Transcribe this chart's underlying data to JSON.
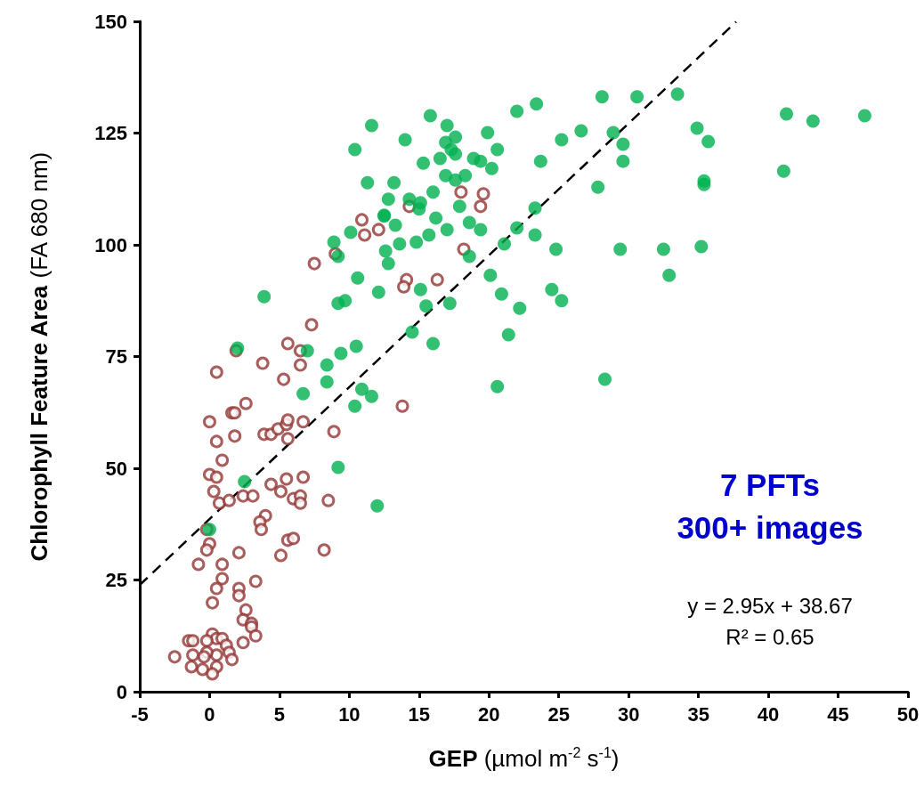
{
  "chart_data": {
    "type": "scatter",
    "xlabel": "GEP (µmol m$^{-2}$ s$^{-1}$)",
    "ylabel": "Chlorophyll Feature Area (FA 680 nm)",
    "xlim": [
      -5,
      50
    ],
    "xticks": [
      -5,
      0,
      5,
      10,
      15,
      20,
      25,
      30,
      35,
      40,
      45,
      50
    ],
    "ylim": [
      0,
      150
    ],
    "yticks": [
      0,
      25,
      50,
      75,
      100,
      125,
      150
    ],
    "grid": false,
    "marker": "circle",
    "annotations": [
      "7 PFTs",
      "300+ images",
      "y = 2.95x + 38.67",
      "R² = 0.65"
    ],
    "series": [
      {
        "color": "#943634",
        "x": [
          0.9,
          0.0,
          0.5,
          0.3,
          0.7,
          1.4,
          2.4,
          3.1,
          4.4,
          5.5,
          6.7,
          5.1,
          6.0,
          6.5,
          6.5,
          8.5,
          4.0,
          3.6,
          3.7,
          -0.2,
          0.0,
          -0.2,
          2.1,
          5.6,
          6.0,
          5.1,
          8.2,
          -0.8,
          0.9,
          0.9,
          3.3,
          0.5,
          2.1,
          2.1,
          0.2,
          2.6,
          2.4,
          3.0,
          3.0,
          3.3,
          2.4,
          0.2,
          0.5,
          0.9,
          -0.2,
          -1.5,
          -1.2,
          1.2,
          1.4,
          1.6,
          0.5,
          -0.2,
          -0.4,
          -1.2,
          -2.5,
          -1.3,
          -0.5,
          0.5,
          0.2,
          10.9,
          11.1,
          12.1,
          9.0,
          7.5,
          14.1,
          13.9,
          7.3,
          5.6,
          6.5,
          1.9,
          3.8,
          6.5,
          0.5,
          5.3,
          2.6,
          1.6,
          1.8,
          13.8,
          0.0,
          0.5,
          1.8,
          3.9,
          4.4,
          4.9,
          5.5,
          5.6,
          6.7,
          5.6,
          8.9,
          14.3,
          18.0,
          19.6,
          19.4,
          18.2,
          16.3
        ],
        "values": [
          51.8,
          48.6,
          48.0,
          44.8,
          42.2,
          42.8,
          43.8,
          43.8,
          46.4,
          47.6,
          48.0,
          44.8,
          43.2,
          43.8,
          42.2,
          42.8,
          39.4,
          38.0,
          36.3,
          36.3,
          33.1,
          31.7,
          31.1,
          33.9,
          34.3,
          30.5,
          31.7,
          28.5,
          28.5,
          25.3,
          24.7,
          23.1,
          23.1,
          21.5,
          19.9,
          18.3,
          16.1,
          15.3,
          14.5,
          12.5,
          11.0,
          12.9,
          11.9,
          11.9,
          11.4,
          11.4,
          11.4,
          10.4,
          8.8,
          7.2,
          8.2,
          8.8,
          7.8,
          8.2,
          7.8,
          5.6,
          5.0,
          5.6,
          4.0,
          105.6,
          102.2,
          103.4,
          98.0,
          95.8,
          92.2,
          90.6,
          82.1,
          77.9,
          76.3,
          76.3,
          73.5,
          73.1,
          71.5,
          69.9,
          64.5,
          62.4,
          62.4,
          63.9,
          60.4,
          56.0,
          57.2,
          57.6,
          57.6,
          58.8,
          59.8,
          60.8,
          60.4,
          56.6,
          58.2,
          108.6,
          111.8,
          111.4,
          108.6,
          99.0,
          92.2
        ]
      },
      {
        "color": "#00b050",
        "x": [
          2.0,
          2.5,
          0.0,
          9.2,
          12.0,
          3.9,
          8.9,
          9.2,
          10.1,
          12.5,
          13.3,
          13.6,
          12.6,
          12.8,
          10.6,
          12.1,
          9.2,
          9.7,
          7.0,
          8.4,
          9.4,
          10.5,
          8.4,
          6.7,
          10.9,
          11.6,
          10.4,
          14.5,
          11.6,
          15.8,
          17.0,
          14.0,
          10.4,
          17.6,
          16.9,
          17.3,
          17.6,
          16.5,
          15.3,
          18.9,
          19.4,
          19.9,
          20.6,
          20.2,
          22.0,
          23.4,
          28.1,
          30.6,
          25.2,
          26.6,
          28.9,
          29.6,
          29.6,
          23.7,
          27.8,
          16.9,
          17.6,
          18.3,
          11.3,
          13.2,
          16.0,
          12.8,
          14.3,
          15.1,
          15.0,
          17.9,
          12.5,
          16.2,
          18.6,
          15.7,
          17.0,
          19.4,
          14.8,
          18.6,
          22.0,
          23.3,
          23.3,
          21.1,
          24.8,
          29.4,
          20.1,
          15.1,
          20.9,
          24.5,
          25.2,
          22.2,
          15.5,
          17.2,
          16.0,
          21.4,
          20.6,
          28.3,
          33.5,
          34.9,
          35.7,
          41.3,
          43.2,
          46.9,
          35.4,
          35.4,
          41.1,
          32.5,
          35.2,
          32.9
        ],
        "values": [
          76.9,
          47.0,
          36.3,
          50.2,
          41.6,
          88.4,
          100.6,
          97.4,
          102.8,
          106.4,
          104.4,
          100.2,
          98.6,
          95.8,
          92.6,
          89.4,
          86.9,
          87.5,
          76.3,
          73.1,
          75.7,
          77.3,
          69.3,
          66.7,
          67.7,
          66.1,
          63.9,
          80.5,
          126.7,
          128.9,
          126.7,
          123.5,
          121.3,
          124.1,
          122.9,
          121.3,
          120.3,
          119.3,
          118.3,
          119.3,
          118.7,
          125.1,
          121.3,
          117.1,
          129.9,
          131.5,
          133.1,
          133.1,
          123.5,
          125.5,
          125.1,
          122.5,
          118.7,
          118.7,
          112.9,
          115.5,
          114.5,
          115.5,
          113.9,
          113.9,
          111.8,
          110.2,
          110.2,
          109.4,
          108.0,
          108.6,
          106.6,
          106.0,
          105.0,
          102.2,
          103.4,
          103.4,
          100.6,
          97.4,
          103.8,
          108.2,
          102.2,
          100.2,
          99.0,
          99.0,
          93.2,
          90.0,
          89.0,
          90.0,
          87.5,
          85.8,
          86.3,
          86.9,
          77.9,
          79.9,
          68.3,
          69.9,
          133.7,
          126.1,
          123.1,
          129.3,
          127.7,
          128.9,
          114.3,
          113.5,
          116.5,
          99.0,
          99.6,
          93.2
        ]
      },
      {
        "type": "line",
        "color": "#000000",
        "line_style": "dashed",
        "marker": "none",
        "x": [
          -5,
          37.7
        ],
        "values": [
          23.9,
          149.9
        ]
      }
    ]
  }
}
